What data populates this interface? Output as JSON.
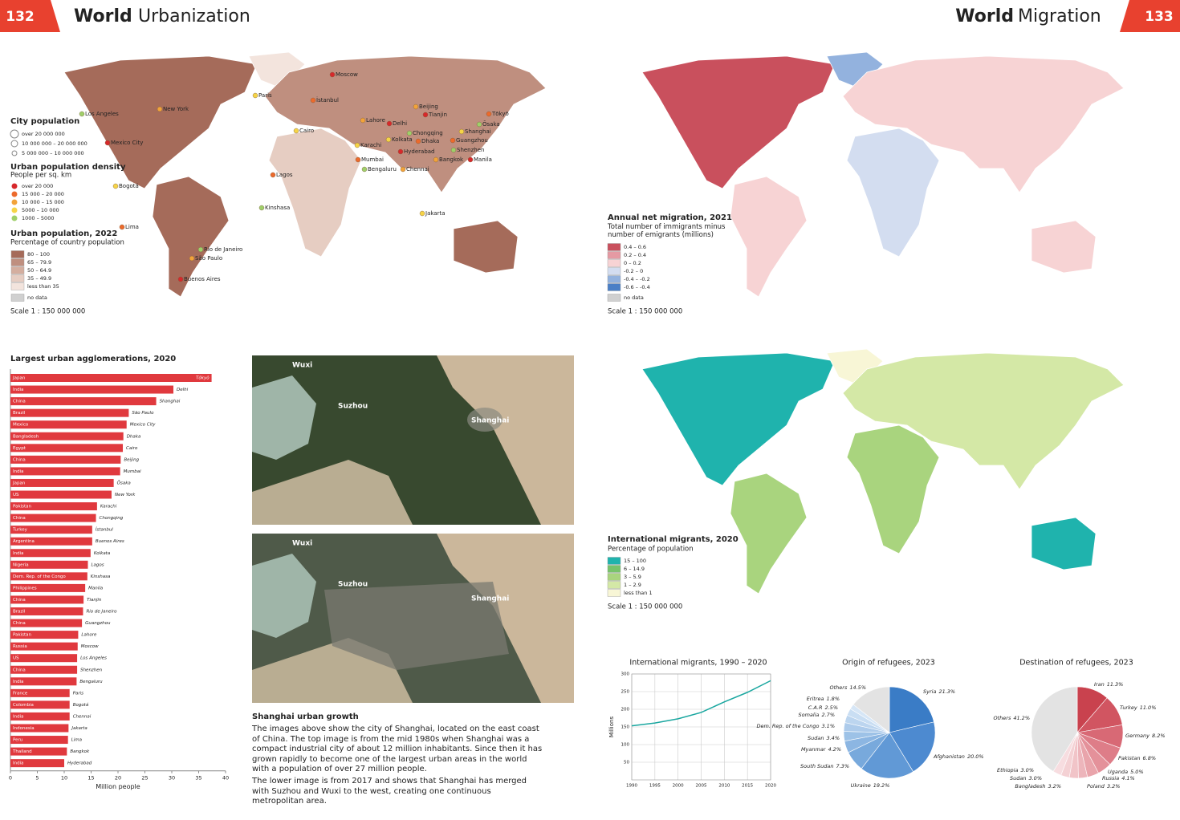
{
  "left_header": {
    "page": "132",
    "section": "World",
    "title": "Urbanization"
  },
  "right_header": {
    "section": "World",
    "title": "Migration",
    "page": "133"
  },
  "urbanization_map": {
    "cities": [
      "Moscow",
      "Paris",
      "İstanbul",
      "Los Angeles",
      "New York",
      "Mexico City",
      "Bogotá",
      "Lima",
      "Rio de Janeiro",
      "São Paulo",
      "Buenos Aires",
      "Cairo",
      "Lagos",
      "Kinshasa",
      "Lahore",
      "Delhi",
      "Karachi",
      "Mumbai",
      "Bengaluru",
      "Chennai",
      "Hyderabad",
      "Kolkata",
      "Dhaka",
      "Chongqing",
      "Beijing",
      "Tianjin",
      "Shanghai",
      "Guangzhou",
      "Shenzhen",
      "Bangkok",
      "Manila",
      "Jakarta",
      "Tōkyō",
      "Ōsaka"
    ],
    "city_population": {
      "title": "City population",
      "items": [
        "over 20 000 000",
        "10 000 000 – 20 000 000",
        "5 000 000 – 10 000 000"
      ]
    },
    "density": {
      "title": "Urban population density",
      "subtitle": "People per sq. km",
      "items": [
        {
          "label": "over 20 000",
          "color": "#d7282b"
        },
        {
          "label": "15 000 – 20 000",
          "color": "#ec6a2c"
        },
        {
          "label": "10 000 – 15 000",
          "color": "#f2a33a"
        },
        {
          "label": "5000 – 10 000",
          "color": "#f6d447"
        },
        {
          "label": "1000 – 5000",
          "color": "#9fcf6a"
        }
      ]
    },
    "urban_population": {
      "title": "Urban population, 2022",
      "subtitle": "Percentage of country population",
      "items": [
        {
          "label": "80 – 100",
          "color": "#a56b5a"
        },
        {
          "label": "65 – 79.9",
          "color": "#bf8f7f"
        },
        {
          "label": "50 – 64.9",
          "color": "#d4ae9f"
        },
        {
          "label": "35 – 49.9",
          "color": "#e6cdc2"
        },
        {
          "label": "less than 35",
          "color": "#f3e4dd"
        },
        {
          "label": "no data",
          "color": "#d0d0d0"
        }
      ]
    },
    "scale": "Scale 1 : 150 000 000"
  },
  "net_migration_map": {
    "title": "Annual net migration, 2021",
    "subtitle": "Total number of immigrants minus number of emigrants (millions)",
    "items": [
      {
        "label": "0.4 – 0.6",
        "color": "#c9505d"
      },
      {
        "label": "0.2 – 0.4",
        "color": "#e59aa3"
      },
      {
        "label": "0 – 0.2",
        "color": "#f7d3d4"
      },
      {
        "label": "-0.2 – 0",
        "color": "#d3ddf0"
      },
      {
        "label": "-0.4 – -0.2",
        "color": "#93b2de"
      },
      {
        "label": "-0.6 – -0.4",
        "color": "#4a7fc6"
      },
      {
        "label": "no data",
        "color": "#d0d0d0"
      }
    ],
    "scale": "Scale 1 : 150 000 000"
  },
  "migrants_map": {
    "title": "International migrants, 2020",
    "subtitle": "Percentage of population",
    "items": [
      {
        "label": "15 – 100",
        "color": "#1fb3ad"
      },
      {
        "label": "6 – 14.9",
        "color": "#77c36a"
      },
      {
        "label": "3 – 5.9",
        "color": "#a9d47e"
      },
      {
        "label": "1 – 2.9",
        "color": "#d4e8a6"
      },
      {
        "label": "less than 1",
        "color": "#f8f6d6"
      }
    ],
    "scale": "Scale 1 : 150 000 000"
  },
  "photos": {
    "labels": [
      "Wuxi",
      "Suzhou",
      "Shanghai"
    ],
    "caption_title": "Shanghai urban growth",
    "paragraphs": [
      "The images above show the city of Shanghai, located on the east coast of China. The top image is from the mid 1980s when Shanghai was a compact industrial city of about 12 million inhabitants. Since then it has grown rapidly to become one of the largest urban areas in the world with a population of over 27 million people.",
      "The lower image is from 2017 and shows that Shanghai has merged with Suzhou and Wuxi to the west, creating one continuous metropolitan area."
    ]
  },
  "chart_data": [
    {
      "type": "bar",
      "orientation": "horizontal",
      "title": "Largest urban agglomerations, 2020",
      "categories": [
        "Tōkyō",
        "Delhi",
        "Shanghai",
        "São Paulo",
        "Mexico City",
        "Dhaka",
        "Cairo",
        "Beijing",
        "Mumbai",
        "Ōsaka",
        "New York",
        "Karachi",
        "Chongqing",
        "İstanbul",
        "Buenos Aires",
        "Kolkata",
        "Lagos",
        "Kinshasa",
        "Manila",
        "Tianjin",
        "Rio de Janeiro",
        "Guangzhou",
        "Lahore",
        "Moscow",
        "Los Angeles",
        "Shenzhen",
        "Bengaluru",
        "Paris",
        "Bogotá",
        "Chennai",
        "Jakarta",
        "Lima",
        "Bangkok",
        "Hyderabad"
      ],
      "countries": [
        "Japan",
        "India",
        "China",
        "Brazil",
        "Mexico",
        "Bangladesh",
        "Egypt",
        "China",
        "India",
        "Japan",
        "US",
        "Pakistan",
        "China",
        "Turkey",
        "Argentina",
        "India",
        "Nigeria",
        "Dem. Rep. of the Congo",
        "Philippines",
        "China",
        "Brazil",
        "China",
        "Pakistan",
        "Russia",
        "US",
        "China",
        "India",
        "France",
        "Colombia",
        "India",
        "Indonesia",
        "Peru",
        "Thailand",
        "India"
      ],
      "values": [
        37.4,
        30.3,
        27.1,
        22.0,
        21.6,
        21.0,
        20.9,
        20.5,
        20.4,
        19.2,
        18.8,
        16.1,
        15.9,
        15.2,
        15.2,
        14.9,
        14.4,
        14.3,
        13.9,
        13.6,
        13.5,
        13.3,
        12.6,
        12.5,
        12.4,
        12.4,
        12.3,
        11.0,
        11.0,
        11.0,
        10.8,
        10.7,
        10.5,
        10.0
      ],
      "color": "#e0393e",
      "xlim": [
        0,
        40
      ],
      "xticks": [
        0,
        5,
        10,
        15,
        20,
        25,
        30,
        35,
        40
      ],
      "xlabel": "Million people"
    },
    {
      "type": "line",
      "title": "International migrants, 1990 – 2020",
      "x": [
        1990,
        1995,
        2000,
        2005,
        2010,
        2015,
        2020
      ],
      "values": [
        153,
        161,
        173,
        191,
        221,
        248,
        281
      ],
      "color": "#1aa7a0",
      "xlim": [
        1990,
        2020
      ],
      "xticks": [
        1990,
        1995,
        2000,
        2005,
        2010,
        2015,
        2020
      ],
      "ylim": [
        0,
        300
      ],
      "yticks": [
        50,
        100,
        150,
        200,
        250,
        300
      ],
      "ylabel": "Millions",
      "grid": true
    },
    {
      "type": "pie",
      "title": "Origin of refugees, 2023",
      "categories": [
        "Syria",
        "Afghanistan",
        "Ukraine",
        "South Sudan",
        "Myanmar",
        "Sudan",
        "Dem. Rep. of the Congo",
        "Somalia",
        "C.A.R",
        "Eritrea",
        "Others"
      ],
      "values": [
        21.3,
        20.0,
        19.2,
        7.3,
        4.2,
        3.4,
        3.1,
        2.7,
        2.5,
        1.8,
        14.5
      ],
      "value_labels": [
        "21.3%",
        "20.0%",
        "19.2%",
        "7.3%",
        "4.2%",
        "3.4%",
        "3.1%",
        "2.7%",
        "2.5%",
        "1.8%",
        "14.5%"
      ],
      "colors": [
        "#3a7cc6",
        "#4d8ad0",
        "#6199d6",
        "#78a9dc",
        "#8cb6e2",
        "#9dc2e7",
        "#adcbeb",
        "#bcd5ef",
        "#c9def3",
        "#d6e6f6",
        "#e3e3e3"
      ]
    },
    {
      "type": "pie",
      "title": "Destination of refugees, 2023",
      "categories": [
        "Iran",
        "Turkey",
        "Germany",
        "Pakistan",
        "Uganda",
        "Russia",
        "Poland",
        "Bangladesh",
        "Sudan",
        "Ethiopia",
        "Others"
      ],
      "values": [
        11.3,
        11.0,
        8.2,
        6.8,
        5.0,
        4.1,
        3.2,
        3.2,
        3.0,
        3.0,
        41.2
      ],
      "value_labels": [
        "11.3%",
        "11.0%",
        "8.2%",
        "6.8%",
        "5.0%",
        "4.1%",
        "3.2%",
        "3.2%",
        "3.0%",
        "3.0%",
        "41.2%"
      ],
      "colors": [
        "#c9424e",
        "#d15561",
        "#d86975",
        "#de7d88",
        "#e4919a",
        "#e9a4ab",
        "#edb5bb",
        "#f1c4c8",
        "#f4d1d4",
        "#f7dde0",
        "#e3e3e3"
      ]
    }
  ]
}
